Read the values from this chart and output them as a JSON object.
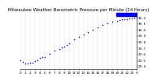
{
  "title": "Milwaukee Weather Barometric Pressure per Minute (24 Hours)",
  "background_color": "#ffffff",
  "plot_bg_color": "#ffffff",
  "dot_color": "#0000ff",
  "grid_color": "#bbbbbb",
  "ylim": [
    29.35,
    30.28
  ],
  "xlim": [
    0,
    1440
  ],
  "yticks": [
    29.4,
    29.5,
    29.6,
    29.7,
    29.8,
    29.9,
    30.0,
    30.1,
    30.2
  ],
  "ytick_labels": [
    "29.4",
    "29.5",
    "29.6",
    "29.7",
    "29.8",
    "29.9",
    "30.0",
    "30.1",
    "30.2"
  ],
  "xticks": [
    0,
    60,
    120,
    180,
    240,
    300,
    360,
    420,
    480,
    540,
    600,
    660,
    720,
    780,
    840,
    900,
    960,
    1020,
    1080,
    1140,
    1200,
    1260,
    1320,
    1380,
    1440
  ],
  "xtick_labels": [
    "0",
    "1",
    "2",
    "3",
    "4",
    "5",
    "6",
    "7",
    "8",
    "9",
    "10",
    "11",
    "12",
    "13",
    "14",
    "15",
    "16",
    "17",
    "18",
    "19",
    "20",
    "21",
    "22",
    "23",
    "0"
  ],
  "x_data": [
    0,
    30,
    60,
    90,
    120,
    150,
    180,
    210,
    240,
    270,
    300,
    360,
    420,
    480,
    510,
    540,
    570,
    600,
    660,
    720,
    780,
    840,
    900,
    960,
    1020,
    1080,
    1140,
    1200,
    1230,
    1260,
    1290,
    1320,
    1350,
    1380,
    1410,
    1440
  ],
  "y_data": [
    29.5,
    29.47,
    29.44,
    29.44,
    29.46,
    29.46,
    29.48,
    29.5,
    29.53,
    29.54,
    29.55,
    29.6,
    29.65,
    29.68,
    29.7,
    29.72,
    29.74,
    29.77,
    29.83,
    29.88,
    29.92,
    29.96,
    29.99,
    30.03,
    30.07,
    30.1,
    30.12,
    30.14,
    30.15,
    30.16,
    30.17,
    30.17,
    30.18,
    30.18,
    30.19,
    30.19
  ],
  "title_fontsize": 4.0,
  "tick_fontsize": 3.0,
  "dot_size": 1.2,
  "grid_x_positions": [
    0,
    60,
    120,
    180,
    240,
    300,
    360,
    420,
    480,
    540,
    600,
    660,
    720,
    780,
    840,
    900,
    960,
    1020,
    1080,
    1140,
    1200,
    1260,
    1320,
    1380,
    1440
  ],
  "blue_bar_x0": 1190,
  "blue_bar_x1": 1440,
  "blue_bar_y0": 30.22,
  "blue_bar_y1": 30.275
}
